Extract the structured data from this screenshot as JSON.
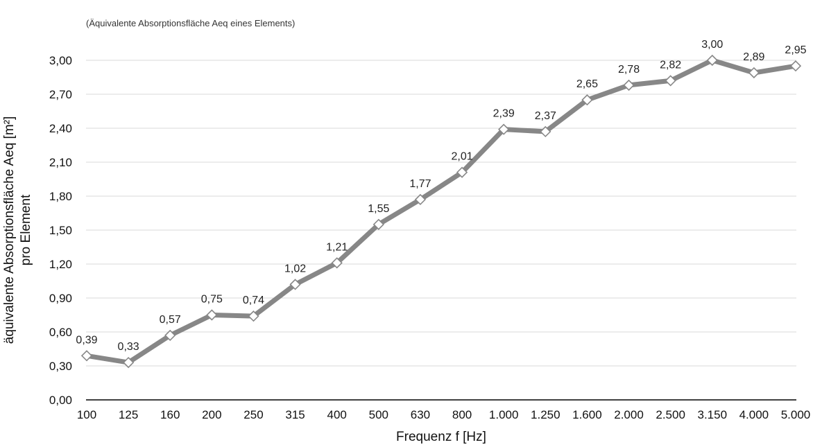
{
  "chart_data": {
    "type": "line",
    "subtitle": "(Äquivalente Absorptionsfläche Aeq eines Elements)",
    "xlabel": "Frequenz f [Hz]",
    "ylabel_lines": [
      "äquivalente Absorptionsfläche Aeq [m²]",
      "pro Element"
    ],
    "categories": [
      "100",
      "125",
      "160",
      "200",
      "250",
      "315",
      "400",
      "500",
      "630",
      "800",
      "1.000",
      "1.250",
      "1.600",
      "2.000",
      "2.500",
      "3.150",
      "4.000",
      "5.000"
    ],
    "values": [
      0.39,
      0.33,
      0.57,
      0.75,
      0.74,
      1.02,
      1.21,
      1.55,
      1.77,
      2.01,
      2.39,
      2.37,
      2.65,
      2.78,
      2.82,
      3.0,
      2.89,
      2.95
    ],
    "value_labels": [
      "0,39",
      "0,33",
      "0,57",
      "0,75",
      "0,74",
      "1,02",
      "1,21",
      "1,55",
      "1,77",
      "2,01",
      "2,39",
      "2,37",
      "2,65",
      "2,78",
      "2,82",
      "3,00",
      "2,89",
      "2,95"
    ],
    "ylim": [
      0,
      3.0
    ],
    "yticks": [
      0,
      0.3,
      0.6,
      0.9,
      1.2,
      1.5,
      1.8,
      2.1,
      2.4,
      2.7,
      3.0
    ],
    "ytick_labels": [
      "0,00",
      "0,30",
      "0,60",
      "0,90",
      "1,20",
      "1,50",
      "1,80",
      "2,10",
      "2,40",
      "2,70",
      "3,00"
    ],
    "grid": true,
    "line_color": "#878787",
    "marker": "diamond"
  }
}
